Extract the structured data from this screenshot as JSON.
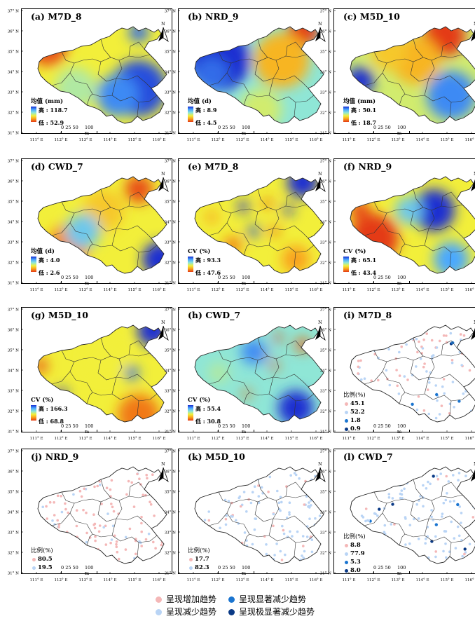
{
  "colors": {
    "increase": "#f4b7b7",
    "decrease": "#b9d4f5",
    "sig_decrease": "#1b75d0",
    "xsig_decrease": "#0b3a86"
  },
  "axes": {
    "lat_labels": [
      "37° N",
      "36° N",
      "35° N",
      "34° N",
      "33° N",
      "32° N",
      "31° N"
    ],
    "lon_labels": [
      "111° E",
      "112° E",
      "113° E",
      "114° E",
      "115° E",
      "116° E"
    ]
  },
  "scale_bar": {
    "ticks": "0  25  50",
    "label": "100 m"
  },
  "north_arrow": {
    "label": "N"
  },
  "panels": [
    {
      "title": "(a) M7D_8",
      "legend_title": "均值 (mm)",
      "high": "高 : 118.7",
      "low": "低 : 52.9"
    },
    {
      "title": "(b) NRD_9",
      "legend_title": "均值 (d)",
      "high": "高 : 8.9",
      "low": "低 : 4.5"
    },
    {
      "title": "(c) M5D_10",
      "legend_title": "均值 (mm)",
      "high": "高 : 50.1",
      "low": "低 : 18.7"
    },
    {
      "title": "(d) CWD_7",
      "legend_title": "均值 (d)",
      "high": "高 : 4.0",
      "low": "低 : 2.6"
    },
    {
      "title": "(e) M7D_8",
      "legend_title": "CV (%)",
      "high": "高 : 93.3",
      "low": "低 : 47.6"
    },
    {
      "title": "(f) NRD_9",
      "legend_title": "CV (%)",
      "high": "高 : 65.1",
      "low": "低 : 43.4"
    },
    {
      "title": "(g) M5D_10",
      "legend_title": "CV (%)",
      "high": "高 : 166.3",
      "low": "低 : 68.8"
    },
    {
      "title": "(h) CWD_7",
      "legend_title": "CV (%)",
      "high": "高 : 55.4",
      "low": "低 : 30.8"
    },
    {
      "title": "(i) M7D_8",
      "legend_title": "比例(%)",
      "props": [
        "45.1",
        "52.2",
        "1.8",
        "0.9"
      ]
    },
    {
      "title": "(j) NRD_9",
      "legend_title": "比例(%)",
      "props": [
        "80.5",
        "19.5"
      ]
    },
    {
      "title": "(k) M5D_10",
      "legend_title": "比例(%)",
      "props": [
        "17.7",
        "82.3"
      ]
    },
    {
      "title": "(l) CWD_7",
      "legend_title": "比例(%)",
      "props": [
        "8.8",
        "77.9",
        "5.3",
        "8.0"
      ]
    }
  ],
  "bottom_legend": {
    "increase": "呈现增加趋势",
    "sig_decrease": "呈现显著减少趋势",
    "decrease": "呈现减少趋势",
    "xsig_decrease": "呈现极显著减少趋势"
  }
}
